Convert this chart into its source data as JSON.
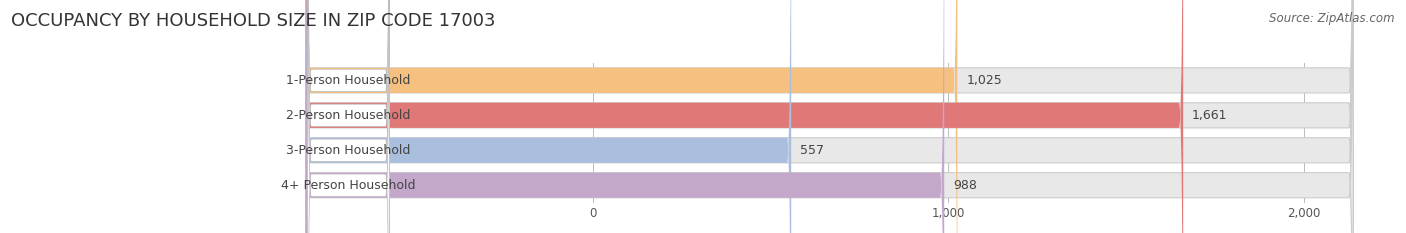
{
  "title": "OCCUPANCY BY HOUSEHOLD SIZE IN ZIP CODE 17003",
  "source": "Source: ZipAtlas.com",
  "categories": [
    "1-Person Household",
    "2-Person Household",
    "3-Person Household",
    "4+ Person Household"
  ],
  "values": [
    1025,
    1661,
    557,
    988
  ],
  "bar_colors": [
    "#F5C080",
    "#E07878",
    "#AABEDD",
    "#C4A8CC"
  ],
  "row_bg_color": "#E8E8E8",
  "xlim_left": -820,
  "xlim_right": 2150,
  "xticks": [
    0,
    1000,
    2000
  ],
  "xtick_labels": [
    "0",
    "1,000",
    "2,000"
  ],
  "bar_height": 0.72,
  "figsize": [
    14.06,
    2.33
  ],
  "dpi": 100,
  "background_color": "#FFFFFF",
  "title_fontsize": 13,
  "source_fontsize": 8.5,
  "label_fontsize": 9,
  "value_fontsize": 9,
  "tick_fontsize": 8.5,
  "label_color": "#444444",
  "value_color": "#444444"
}
